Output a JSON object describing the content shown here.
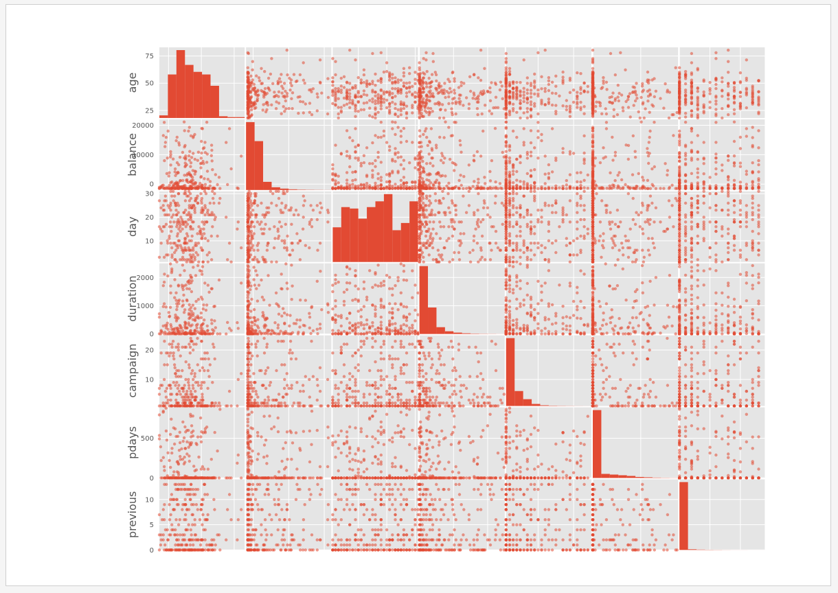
{
  "chart_data": {
    "type": "scatter",
    "matrix": "scatter_matrix",
    "variables": [
      "age",
      "balance",
      "day",
      "duration",
      "campaign",
      "pdays",
      "previous"
    ],
    "diagonal": "histogram",
    "grid": true,
    "color": "#e24a33",
    "background": "#e5e5e5",
    "ranges": {
      "age": [
        18,
        83
      ],
      "balance": [
        -2000,
        22000
      ],
      "day": [
        1,
        31
      ],
      "duration": [
        0,
        2500
      ],
      "campaign": [
        1,
        25
      ],
      "pdays": [
        -1,
        890
      ],
      "previous": [
        0,
        14
      ]
    },
    "discrete": {
      "age": false,
      "balance": false,
      "day": true,
      "duration": false,
      "campaign": true,
      "pdays": false,
      "previous": true
    },
    "yticks": {
      "age": [
        {
          "v": 25,
          "label": "25"
        },
        {
          "v": 50,
          "label": "50"
        },
        {
          "v": 75,
          "label": "75"
        }
      ],
      "balance": [
        {
          "v": 0,
          "label": "0"
        },
        {
          "v": 10000,
          "label": "10000"
        },
        {
          "v": 20000,
          "label": "20000"
        }
      ],
      "day": [
        {
          "v": 10,
          "label": "10"
        },
        {
          "v": 20,
          "label": "20"
        },
        {
          "v": 30,
          "label": "30"
        }
      ],
      "duration": [
        {
          "v": 0,
          "label": "0"
        },
        {
          "v": 1000,
          "label": "1000"
        },
        {
          "v": 2000,
          "label": "2000"
        }
      ],
      "campaign": [
        {
          "v": 10,
          "label": "10"
        },
        {
          "v": 20,
          "label": "20"
        }
      ],
      "pdays": [
        {
          "v": 0,
          "label": "0"
        },
        {
          "v": 500,
          "label": "500"
        }
      ],
      "previous": [
        {
          "v": 0,
          "label": "0"
        },
        {
          "v": 5,
          "label": "5"
        },
        {
          "v": 10,
          "label": "10"
        }
      ]
    },
    "histograms": {
      "age": [
        3,
        50,
        78,
        61,
        53,
        50,
        37,
        2,
        1,
        1
      ],
      "balance": [
        100,
        72,
        12,
        4,
        2,
        1,
        0.5,
        0.3,
        0.2,
        0.1
      ],
      "day": [
        24,
        38,
        37,
        30,
        38,
        42,
        47,
        22,
        27,
        42
      ],
      "duration": [
        100,
        39,
        10,
        4,
        2,
        1,
        0.5,
        0.3,
        0.2,
        0.1
      ],
      "campaign": [
        100,
        22,
        10,
        3,
        1,
        0.5,
        0.3,
        0.2,
        0.1,
        0.05
      ],
      "pdays": [
        100,
        6,
        5,
        4,
        3,
        1.5,
        1,
        0.5,
        0.3,
        0.2
      ],
      "previous": [
        100,
        1,
        0.5,
        0.3,
        0.2,
        0.1,
        0.05,
        0.05,
        0.02,
        0.02
      ]
    }
  }
}
